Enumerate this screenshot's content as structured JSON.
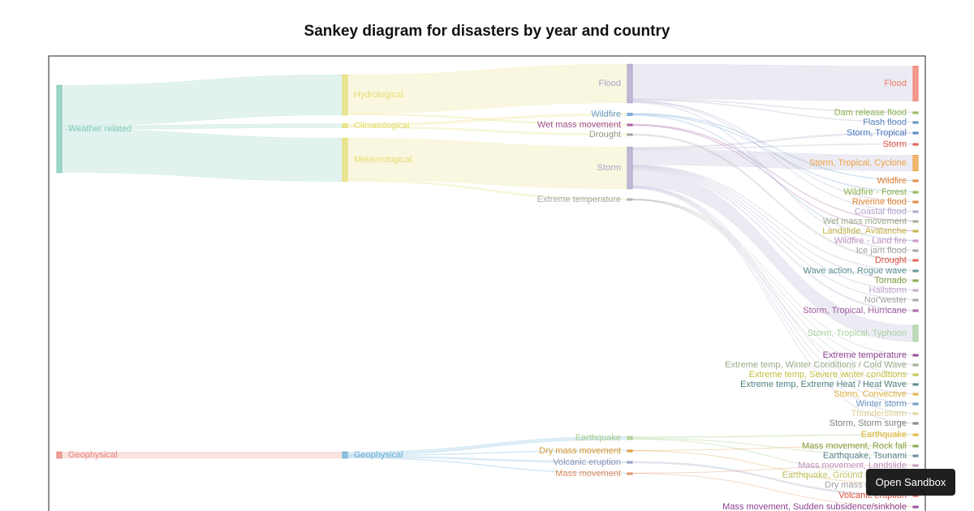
{
  "chart_data": {
    "type": "sankey",
    "title": "Sankey diagram for disasters by year and country",
    "nodes": [
      {
        "name": "Weather related",
        "color": "#7cc8b4"
      },
      {
        "name": "Geophysical",
        "color": "#e8837a"
      },
      {
        "name": "Hydrological",
        "color": "#e6dc70"
      },
      {
        "name": "Climatological",
        "color": "#e6dc70"
      },
      {
        "name": "Meteorological",
        "color": "#e6dc70"
      },
      {
        "name": "Geophysical",
        "color": "#6aaed6"
      },
      {
        "name": "Flood",
        "color": "#a9a2c9"
      },
      {
        "name": "Wildfire",
        "color": "#6a9ed0"
      },
      {
        "name": "Wet mass movement",
        "color": "#a0529a"
      },
      {
        "name": "Drought",
        "color": "#999999"
      },
      {
        "name": "Storm",
        "color": "#a9a2c9"
      },
      {
        "name": "Extreme temperature",
        "color": "#a8a8a8"
      },
      {
        "name": "Earthquake",
        "color": "#a6d08c"
      },
      {
        "name": "Dry mass movement",
        "color": "#d9962a"
      },
      {
        "name": "Volcanic eruption",
        "color": "#8f96b8"
      },
      {
        "name": "Mass movement",
        "color": "#e08a58"
      },
      {
        "name": "Flood",
        "color": "#f07868"
      },
      {
        "name": "Dam release flood",
        "color": "#8bb050"
      },
      {
        "name": "Flash flood",
        "color": "#5a88c0"
      },
      {
        "name": "Storm, Tropical",
        "color": "#4a78c0"
      },
      {
        "name": "Storm",
        "color": "#e05040"
      },
      {
        "name": "Storm, Tropical, Cyclone",
        "color": "#eea040"
      },
      {
        "name": "Wildfire",
        "color": "#e08030"
      },
      {
        "name": "Wildfire - Forest",
        "color": "#8aae4a"
      },
      {
        "name": "Riverine flood",
        "color": "#e08030"
      },
      {
        "name": "Coastal flood",
        "color": "#b0a0c8"
      },
      {
        "name": "Wet mass movement",
        "color": "#98aa88"
      },
      {
        "name": "Landslide, Avalanche",
        "color": "#c0b040"
      },
      {
        "name": "Wildfire - Land fire",
        "color": "#c090c0"
      },
      {
        "name": "Ice jam flood",
        "color": "#a0a0a0"
      },
      {
        "name": "Drought",
        "color": "#e05040"
      },
      {
        "name": "Wave action, Rogue wave",
        "color": "#5a9090"
      },
      {
        "name": "Tornado",
        "color": "#80a040"
      },
      {
        "name": "Hailstorm",
        "color": "#c0a0c8"
      },
      {
        "name": "Nor'wester",
        "color": "#a0a0a0"
      },
      {
        "name": "Storm, Tropical, Hurricane",
        "color": "#a05aa0"
      },
      {
        "name": "Storm, Tropical, Typhoon",
        "color": "#a8d0a0"
      },
      {
        "name": "Extreme temperature",
        "color": "#904090"
      },
      {
        "name": "Extreme temp, Winter Conditions / Cold Wave",
        "color": "#98aa88"
      },
      {
        "name": "Extreme temp, Severe winter conditions",
        "color": "#c0c040"
      },
      {
        "name": "Extreme temp, Extreme Heat / Heat Wave",
        "color": "#508080"
      },
      {
        "name": "Storm, Convective",
        "color": "#e0b040"
      },
      {
        "name": "Winter storm",
        "color": "#6090c0"
      },
      {
        "name": "Thunderstorm",
        "color": "#e0d090"
      },
      {
        "name": "Storm, Storm surge",
        "color": "#808080"
      },
      {
        "name": "Earthquake",
        "color": "#e0b030"
      },
      {
        "name": "Mass movement, Rock fall",
        "color": "#80a040"
      },
      {
        "name": "Earthquake, Tsunami",
        "color": "#5a8090"
      },
      {
        "name": "Mass movement, Landslide",
        "color": "#c090c0"
      },
      {
        "name": "Earthquake, Ground movement",
        "color": "#c0c060"
      },
      {
        "name": "Dry mass movement",
        "color": "#a0a0a0"
      },
      {
        "name": "Volcanic eruption",
        "color": "#e05040"
      },
      {
        "name": "Mass movement, Sudden subsidence/sinkhole",
        "color": "#904090"
      }
    ],
    "links": [
      {
        "source": 0,
        "target": 2,
        "value": 52
      },
      {
        "source": 0,
        "target": 3,
        "value": 5
      },
      {
        "source": 0,
        "target": 4,
        "value": 56
      },
      {
        "source": 1,
        "target": 5,
        "value": 8
      },
      {
        "source": 2,
        "target": 6,
        "value": 50
      },
      {
        "source": 2,
        "target": 8,
        "value": 2
      },
      {
        "source": 3,
        "target": 7,
        "value": 3
      },
      {
        "source": 3,
        "target": 9,
        "value": 2
      },
      {
        "source": 4,
        "target": 10,
        "value": 54
      },
      {
        "source": 4,
        "target": 11,
        "value": 2
      },
      {
        "source": 5,
        "target": 12,
        "value": 4
      },
      {
        "source": 5,
        "target": 13,
        "value": 1
      },
      {
        "source": 5,
        "target": 14,
        "value": 2
      },
      {
        "source": 5,
        "target": 15,
        "value": 1
      },
      {
        "source": 6,
        "target": 16,
        "value": 45
      },
      {
        "source": 6,
        "target": 17,
        "value": 1
      },
      {
        "source": 6,
        "target": 18,
        "value": 1
      },
      {
        "source": 6,
        "target": 24,
        "value": 1
      },
      {
        "source": 6,
        "target": 25,
        "value": 1
      },
      {
        "source": 6,
        "target": 29,
        "value": 1
      },
      {
        "source": 7,
        "target": 22,
        "value": 1
      },
      {
        "source": 7,
        "target": 23,
        "value": 1
      },
      {
        "source": 7,
        "target": 28,
        "value": 1
      },
      {
        "source": 8,
        "target": 26,
        "value": 1
      },
      {
        "source": 8,
        "target": 27,
        "value": 1
      },
      {
        "source": 9,
        "target": 30,
        "value": 2
      },
      {
        "source": 10,
        "target": 19,
        "value": 2
      },
      {
        "source": 10,
        "target": 20,
        "value": 1
      },
      {
        "source": 10,
        "target": 21,
        "value": 20
      },
      {
        "source": 10,
        "target": 31,
        "value": 1
      },
      {
        "source": 10,
        "target": 32,
        "value": 1
      },
      {
        "source": 10,
        "target": 33,
        "value": 1
      },
      {
        "source": 10,
        "target": 34,
        "value": 1
      },
      {
        "source": 10,
        "target": 35,
        "value": 2
      },
      {
        "source": 10,
        "target": 36,
        "value": 21
      },
      {
        "source": 10,
        "target": 41,
        "value": 1
      },
      {
        "source": 10,
        "target": 42,
        "value": 1
      },
      {
        "source": 10,
        "target": 43,
        "value": 1
      },
      {
        "source": 10,
        "target": 44,
        "value": 1
      },
      {
        "source": 11,
        "target": 37,
        "value": 0.5
      },
      {
        "source": 11,
        "target": 38,
        "value": 0.5
      },
      {
        "source": 11,
        "target": 39,
        "value": 0.5
      },
      {
        "source": 11,
        "target": 40,
        "value": 0.5
      },
      {
        "source": 12,
        "target": 45,
        "value": 2
      },
      {
        "source": 12,
        "target": 47,
        "value": 1
      },
      {
        "source": 12,
        "target": 49,
        "value": 1
      },
      {
        "source": 13,
        "target": 46,
        "value": 0.5
      },
      {
        "source": 13,
        "target": 50,
        "value": 0.5
      },
      {
        "source": 14,
        "target": 51,
        "value": 2
      },
      {
        "source": 15,
        "target": 48,
        "value": 0.5
      },
      {
        "source": 15,
        "target": 52,
        "value": 0.5
      }
    ]
  },
  "sandbox_button": "Open Sandbox"
}
